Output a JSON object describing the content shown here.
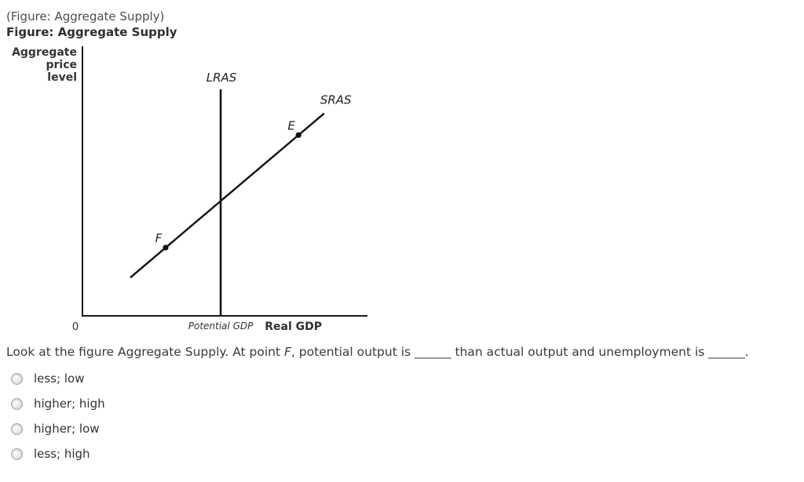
{
  "header": {
    "reference": "(Figure: Aggregate Supply)",
    "title": "Figure: Aggregate Supply"
  },
  "chart_data": {
    "type": "line",
    "title": "Aggregate Supply",
    "ylabel": "Aggregate price level",
    "ylabel_lines": [
      "Aggregate",
      "price",
      "level"
    ],
    "xlabel": "Real GDP",
    "origin_label": "0",
    "axes": {
      "x_range": [
        0,
        100
      ],
      "y_range": [
        0,
        100
      ],
      "grid": false,
      "numeric_ticks": false
    },
    "x_axis_tick_labels": [
      {
        "label": "Potential GDP",
        "x": 48.5
      }
    ],
    "series": [
      {
        "name": "LRAS",
        "kind": "vertical-line",
        "description": "Vertical long-run aggregate supply curve at potential GDP",
        "x": 48.5,
        "y_from": 0,
        "y_to": 84
      },
      {
        "name": "SRAS",
        "kind": "line",
        "description": "Upward-sloping short-run aggregate supply curve",
        "points": [
          [
            16.8,
            14.2
          ],
          [
            84.8,
            75.1
          ]
        ]
      }
    ],
    "points": [
      {
        "label": "E",
        "x": 75.8,
        "on_series": "SRAS"
      },
      {
        "label": "F",
        "x": 29.2,
        "on_series": "SRAS"
      }
    ],
    "colors": {
      "line": "#111111",
      "axis": "#1a1a1a"
    },
    "legend": "none"
  },
  "question": {
    "prefix": "Look at the figure Aggregate Supply. At point ",
    "point_label": "F",
    "suffix": ", potential output is ______ than actual output and unemployment is ______."
  },
  "options": [
    {
      "label": "less; low",
      "selected": false
    },
    {
      "label": "higher; high",
      "selected": false
    },
    {
      "label": "higher; low",
      "selected": false
    },
    {
      "label": "less; high",
      "selected": false
    }
  ]
}
